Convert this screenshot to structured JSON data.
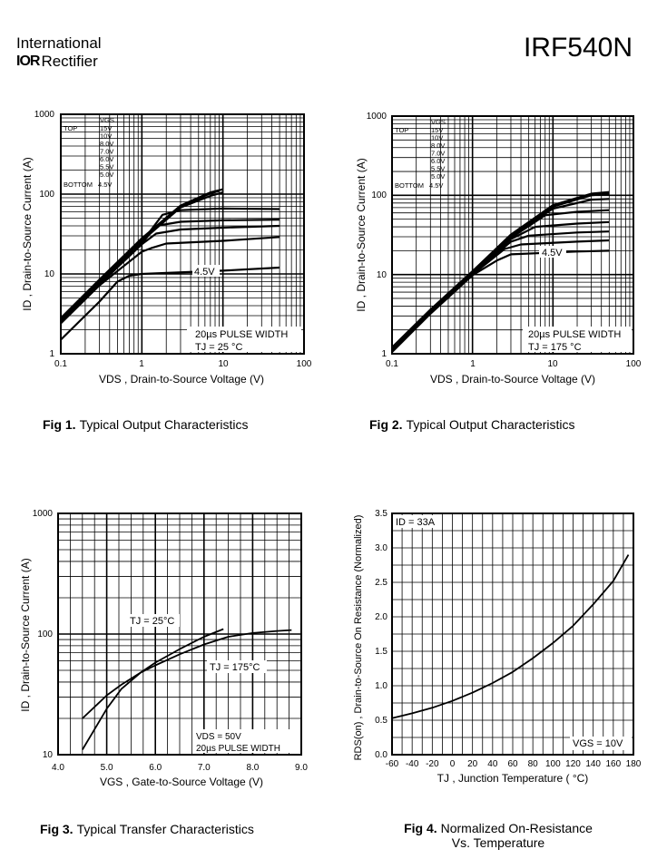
{
  "header": {
    "brand_line1": "International",
    "brand_logo": "IOR",
    "brand_line2": "Rectifier",
    "part_number": "IRF540N"
  },
  "chart_data": [
    {
      "type": "line",
      "caption_num": "Fig 1.",
      "caption": "Typical Output Characteristics",
      "xlabel": "VDS , Drain-to-Source Voltage (V)",
      "ylabel": "ID , Drain-to-Source Current (A)",
      "xscale": "log",
      "yscale": "log",
      "xlim": [
        0.1,
        100
      ],
      "ylim": [
        1,
        1000
      ],
      "xticks": [
        "0.1",
        "1",
        "10",
        "100"
      ],
      "yticks": [
        "1",
        "10",
        "100",
        "1000"
      ],
      "legend": {
        "header": "VGS",
        "top_label": "TOP",
        "bottom_label": "BOTTOM",
        "values": [
          "15V",
          "10V",
          "8.0V",
          "7.0V",
          "6.0V",
          "5.5V",
          "5.0V",
          "4.5V"
        ]
      },
      "annotations": [
        "4.5V",
        "20µs PULSE WIDTH",
        "TJ = 25 °C"
      ],
      "series": [
        {
          "name": "15V",
          "x": [
            0.1,
            0.3,
            1,
            3,
            7,
            10
          ],
          "y": [
            2.8,
            8.5,
            28,
            72,
            105,
            115
          ]
        },
        {
          "name": "10V",
          "x": [
            0.1,
            0.3,
            1,
            3,
            7,
            9
          ],
          "y": [
            2.7,
            8.2,
            27,
            70,
            102,
            110
          ]
        },
        {
          "name": "8.0V",
          "x": [
            0.1,
            0.3,
            1,
            3,
            7,
            10
          ],
          "y": [
            2.6,
            8,
            26,
            68,
            95,
            105
          ]
        },
        {
          "name": "7.0V",
          "x": [
            0.1,
            0.3,
            1,
            1.8,
            3,
            10,
            50
          ],
          "y": [
            2.55,
            7.8,
            25,
            55,
            63,
            66,
            65
          ]
        },
        {
          "name": "6.0V",
          "x": [
            0.1,
            0.3,
            1,
            1.5,
            3,
            10,
            50
          ],
          "y": [
            2.5,
            7.6,
            24,
            40,
            45,
            47,
            48
          ]
        },
        {
          "name": "5.5V",
          "x": [
            0.1,
            0.3,
            1,
            1.5,
            3,
            10,
            50
          ],
          "y": [
            2.45,
            7.4,
            23.5,
            32,
            36,
            38,
            40
          ]
        },
        {
          "name": "5.0V",
          "x": [
            0.1,
            0.3,
            1,
            1.3,
            2,
            10,
            50
          ],
          "y": [
            2.4,
            7.2,
            19,
            21,
            24,
            26,
            29
          ]
        },
        {
          "name": "4.5V",
          "x": [
            0.1,
            0.3,
            0.5,
            0.7,
            1,
            10,
            50
          ],
          "y": [
            1.5,
            4.5,
            8,
            9.5,
            10,
            11,
            12
          ]
        }
      ]
    },
    {
      "type": "line",
      "caption_num": "Fig 2.",
      "caption": "Typical Output Characteristics",
      "xlabel": "VDS , Drain-to-Source Voltage (V)",
      "ylabel": "ID , Drain-to-Source Current (A)",
      "xscale": "log",
      "yscale": "log",
      "xlim": [
        0.1,
        100
      ],
      "ylim": [
        1,
        1000
      ],
      "xticks": [
        "0.1",
        "1",
        "10",
        "100"
      ],
      "yticks": [
        "1",
        "10",
        "100",
        "1000"
      ],
      "legend": {
        "header": "VGS",
        "top_label": "TOP",
        "bottom_label": "BOTTOM",
        "values": [
          "15V",
          "10V",
          "8.0V",
          "7.0V",
          "6.0V",
          "5.5V",
          "5.0V",
          "4.5V"
        ]
      },
      "annotations": [
        "4.5V",
        "20µs PULSE WIDTH",
        "TJ = 175 °C"
      ],
      "series": [
        {
          "name": "15V",
          "x": [
            0.1,
            0.3,
            1,
            3,
            10,
            30,
            50
          ],
          "y": [
            1.2,
            3.6,
            11,
            32,
            75,
            105,
            110
          ]
        },
        {
          "name": "10V",
          "x": [
            0.1,
            0.3,
            1,
            3,
            10,
            30,
            50
          ],
          "y": [
            1.2,
            3.6,
            11,
            31,
            72,
            100,
            105
          ]
        },
        {
          "name": "8.0V",
          "x": [
            0.1,
            0.3,
            1,
            3,
            10,
            30,
            50
          ],
          "y": [
            1.15,
            3.5,
            10.8,
            30,
            68,
            88,
            90
          ]
        },
        {
          "name": "7.0V",
          "x": [
            0.1,
            0.3,
            1,
            3,
            8,
            20,
            50
          ],
          "y": [
            1.15,
            3.5,
            10.6,
            29,
            56,
            62,
            65
          ]
        },
        {
          "name": "6.0V",
          "x": [
            0.1,
            0.3,
            1,
            3,
            6,
            20,
            50
          ],
          "y": [
            1.1,
            3.4,
            10.4,
            28,
            40,
            44,
            46
          ]
        },
        {
          "name": "5.5V",
          "x": [
            0.1,
            0.3,
            1,
            3,
            5,
            20,
            50
          ],
          "y": [
            1.1,
            3.4,
            10.2,
            26,
            31,
            34,
            35
          ]
        },
        {
          "name": "5.0V",
          "x": [
            0.1,
            0.3,
            1,
            2.5,
            4,
            20,
            50
          ],
          "y": [
            1.1,
            3.3,
            10,
            21,
            24,
            26,
            27
          ]
        },
        {
          "name": "4.5V",
          "x": [
            0.1,
            0.3,
            1,
            2,
            3,
            20,
            50
          ],
          "y": [
            1.05,
            3.2,
            9.8,
            15,
            18,
            19.5,
            20
          ]
        }
      ]
    },
    {
      "type": "line",
      "caption_num": "Fig 3.",
      "caption": "Typical Transfer Characteristics",
      "xlabel": "VGS , Gate-to-Source Voltage (V)",
      "ylabel": "ID , Drain-to-Source Current (A)",
      "xscale": "linear",
      "yscale": "log",
      "xlim": [
        4.0,
        9.0
      ],
      "ylim": [
        10,
        1000
      ],
      "xticks": [
        "4.0",
        "5.0",
        "6.0",
        "7.0",
        "8.0",
        "9.0"
      ],
      "yticks": [
        "10",
        "100",
        "1000"
      ],
      "annotations": [
        "TJ = 25°C",
        "TJ = 175°C",
        "VDS = 50V",
        "20µs PULSE WIDTH"
      ],
      "series": [
        {
          "name": "TJ = 25°C",
          "x": [
            4.5,
            4.7,
            5.0,
            5.3,
            5.7,
            6.0,
            6.5,
            7.0,
            7.4
          ],
          "y": [
            11,
            15,
            24,
            35,
            48,
            58,
            75,
            95,
            110
          ]
        },
        {
          "name": "TJ = 175°C",
          "x": [
            4.5,
            4.8,
            5.0,
            5.3,
            5.7,
            6.0,
            6.5,
            7.0,
            7.5,
            8.0,
            8.5,
            8.8
          ],
          "y": [
            20,
            26,
            31,
            38,
            48,
            55,
            68,
            82,
            95,
            102,
            106,
            108
          ]
        }
      ]
    },
    {
      "type": "line",
      "caption_num": "Fig 4.",
      "caption": "Normalized On-Resistance",
      "caption2": "Vs. Temperature",
      "xlabel": "TJ , Junction Temperature ( °C)",
      "ylabel": "RDS(on) , Drain-to-Source On Resistance (Normalized)",
      "xscale": "linear",
      "yscale": "linear",
      "xlim": [
        -60,
        180
      ],
      "ylim": [
        0.0,
        3.5
      ],
      "xticks": [
        "-60",
        "-40",
        "-20",
        "0",
        "20",
        "40",
        "60",
        "80",
        "100",
        "120",
        "140",
        "160",
        "180"
      ],
      "yticks": [
        "0.0",
        "0.5",
        "1.0",
        "1.5",
        "2.0",
        "2.5",
        "3.0",
        "3.5"
      ],
      "annotations": [
        "ID = 33A",
        "VGS = 10V"
      ],
      "series": [
        {
          "name": "VGS = 10V",
          "x": [
            -60,
            -40,
            -20,
            0,
            20,
            40,
            60,
            80,
            100,
            120,
            140,
            160,
            175
          ],
          "y": [
            0.53,
            0.6,
            0.68,
            0.78,
            0.9,
            1.04,
            1.2,
            1.4,
            1.62,
            1.87,
            2.18,
            2.52,
            2.9
          ]
        }
      ]
    }
  ]
}
